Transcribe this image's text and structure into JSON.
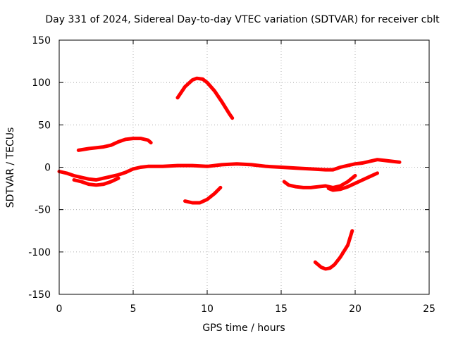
{
  "chart_data": {
    "type": "line",
    "title": "Day 331 of 2024, Sidereal Day-to-day VTEC variation (SDTVAR) for receiver cblt",
    "xlabel": "GPS time / hours",
    "ylabel": "SDTVAR / TECUs",
    "xlim": [
      0,
      25
    ],
    "ylim": [
      -150,
      150
    ],
    "xticks": [
      0,
      5,
      10,
      15,
      20,
      25
    ],
    "yticks": [
      -150,
      -100,
      -50,
      0,
      50,
      100,
      150
    ],
    "grid": true,
    "color": "#ff0000",
    "series": [
      {
        "name": "main-track",
        "x": [
          0,
          0.5,
          1,
          1.5,
          2,
          2.5,
          3,
          3.5,
          4,
          4.5,
          5,
          5.5,
          6,
          7,
          8,
          9,
          10,
          11,
          12,
          13,
          14,
          15,
          16,
          17,
          18,
          18.5,
          19,
          19.5,
          20,
          20.5,
          21,
          21.5,
          22,
          22.5,
          23
        ],
        "y": [
          -5,
          -7,
          -10,
          -12,
          -14,
          -15,
          -13,
          -11,
          -9,
          -6,
          -2,
          0,
          1,
          1,
          2,
          2,
          1,
          3,
          4,
          3,
          1,
          0,
          -1,
          -2,
          -3,
          -3,
          0,
          2,
          4,
          5,
          7,
          9,
          8,
          7,
          6
        ]
      },
      {
        "name": "track-low-left",
        "x": [
          1,
          1.5,
          2,
          2.5,
          3,
          3.5,
          4
        ],
        "y": [
          -15,
          -17,
          -20,
          -21,
          -20,
          -17,
          -13
        ]
      },
      {
        "name": "track-upper-left",
        "x": [
          1.3,
          2,
          3,
          3.5,
          4,
          4.5,
          5,
          5.5,
          6,
          6.2
        ],
        "y": [
          20,
          22,
          24,
          26,
          30,
          33,
          34,
          34,
          32,
          29
        ]
      },
      {
        "name": "track-hump",
        "x": [
          8,
          8.5,
          9,
          9.3,
          9.7,
          10,
          10.5,
          11,
          11.5,
          11.7
        ],
        "y": [
          82,
          95,
          103,
          105,
          104,
          100,
          90,
          77,
          63,
          58
        ]
      },
      {
        "name": "track-dip-middle",
        "x": [
          8.5,
          9,
          9.5,
          10,
          10.5,
          10.9
        ],
        "y": [
          -40,
          -42,
          -42,
          -38,
          -31,
          -24
        ]
      },
      {
        "name": "track-right-upper",
        "x": [
          15.2,
          15.5,
          16,
          16.5,
          17,
          17.5,
          18,
          18.5,
          19,
          19.5,
          20
        ],
        "y": [
          -17,
          -21,
          -23,
          -24,
          -24,
          -23,
          -22,
          -24,
          -22,
          -17,
          -10
        ]
      },
      {
        "name": "track-right-lower",
        "x": [
          18.2,
          18.5,
          19,
          19.5,
          20,
          20.5,
          21,
          21.5
        ],
        "y": [
          -25,
          -27,
          -26,
          -23,
          -19,
          -15,
          -11,
          -7
        ]
      },
      {
        "name": "track-deep-dip",
        "x": [
          17.3,
          17.7,
          18,
          18.3,
          18.6,
          19,
          19.5,
          19.8
        ],
        "y": [
          -112,
          -118,
          -120,
          -119,
          -115,
          -106,
          -92,
          -75
        ]
      }
    ]
  }
}
